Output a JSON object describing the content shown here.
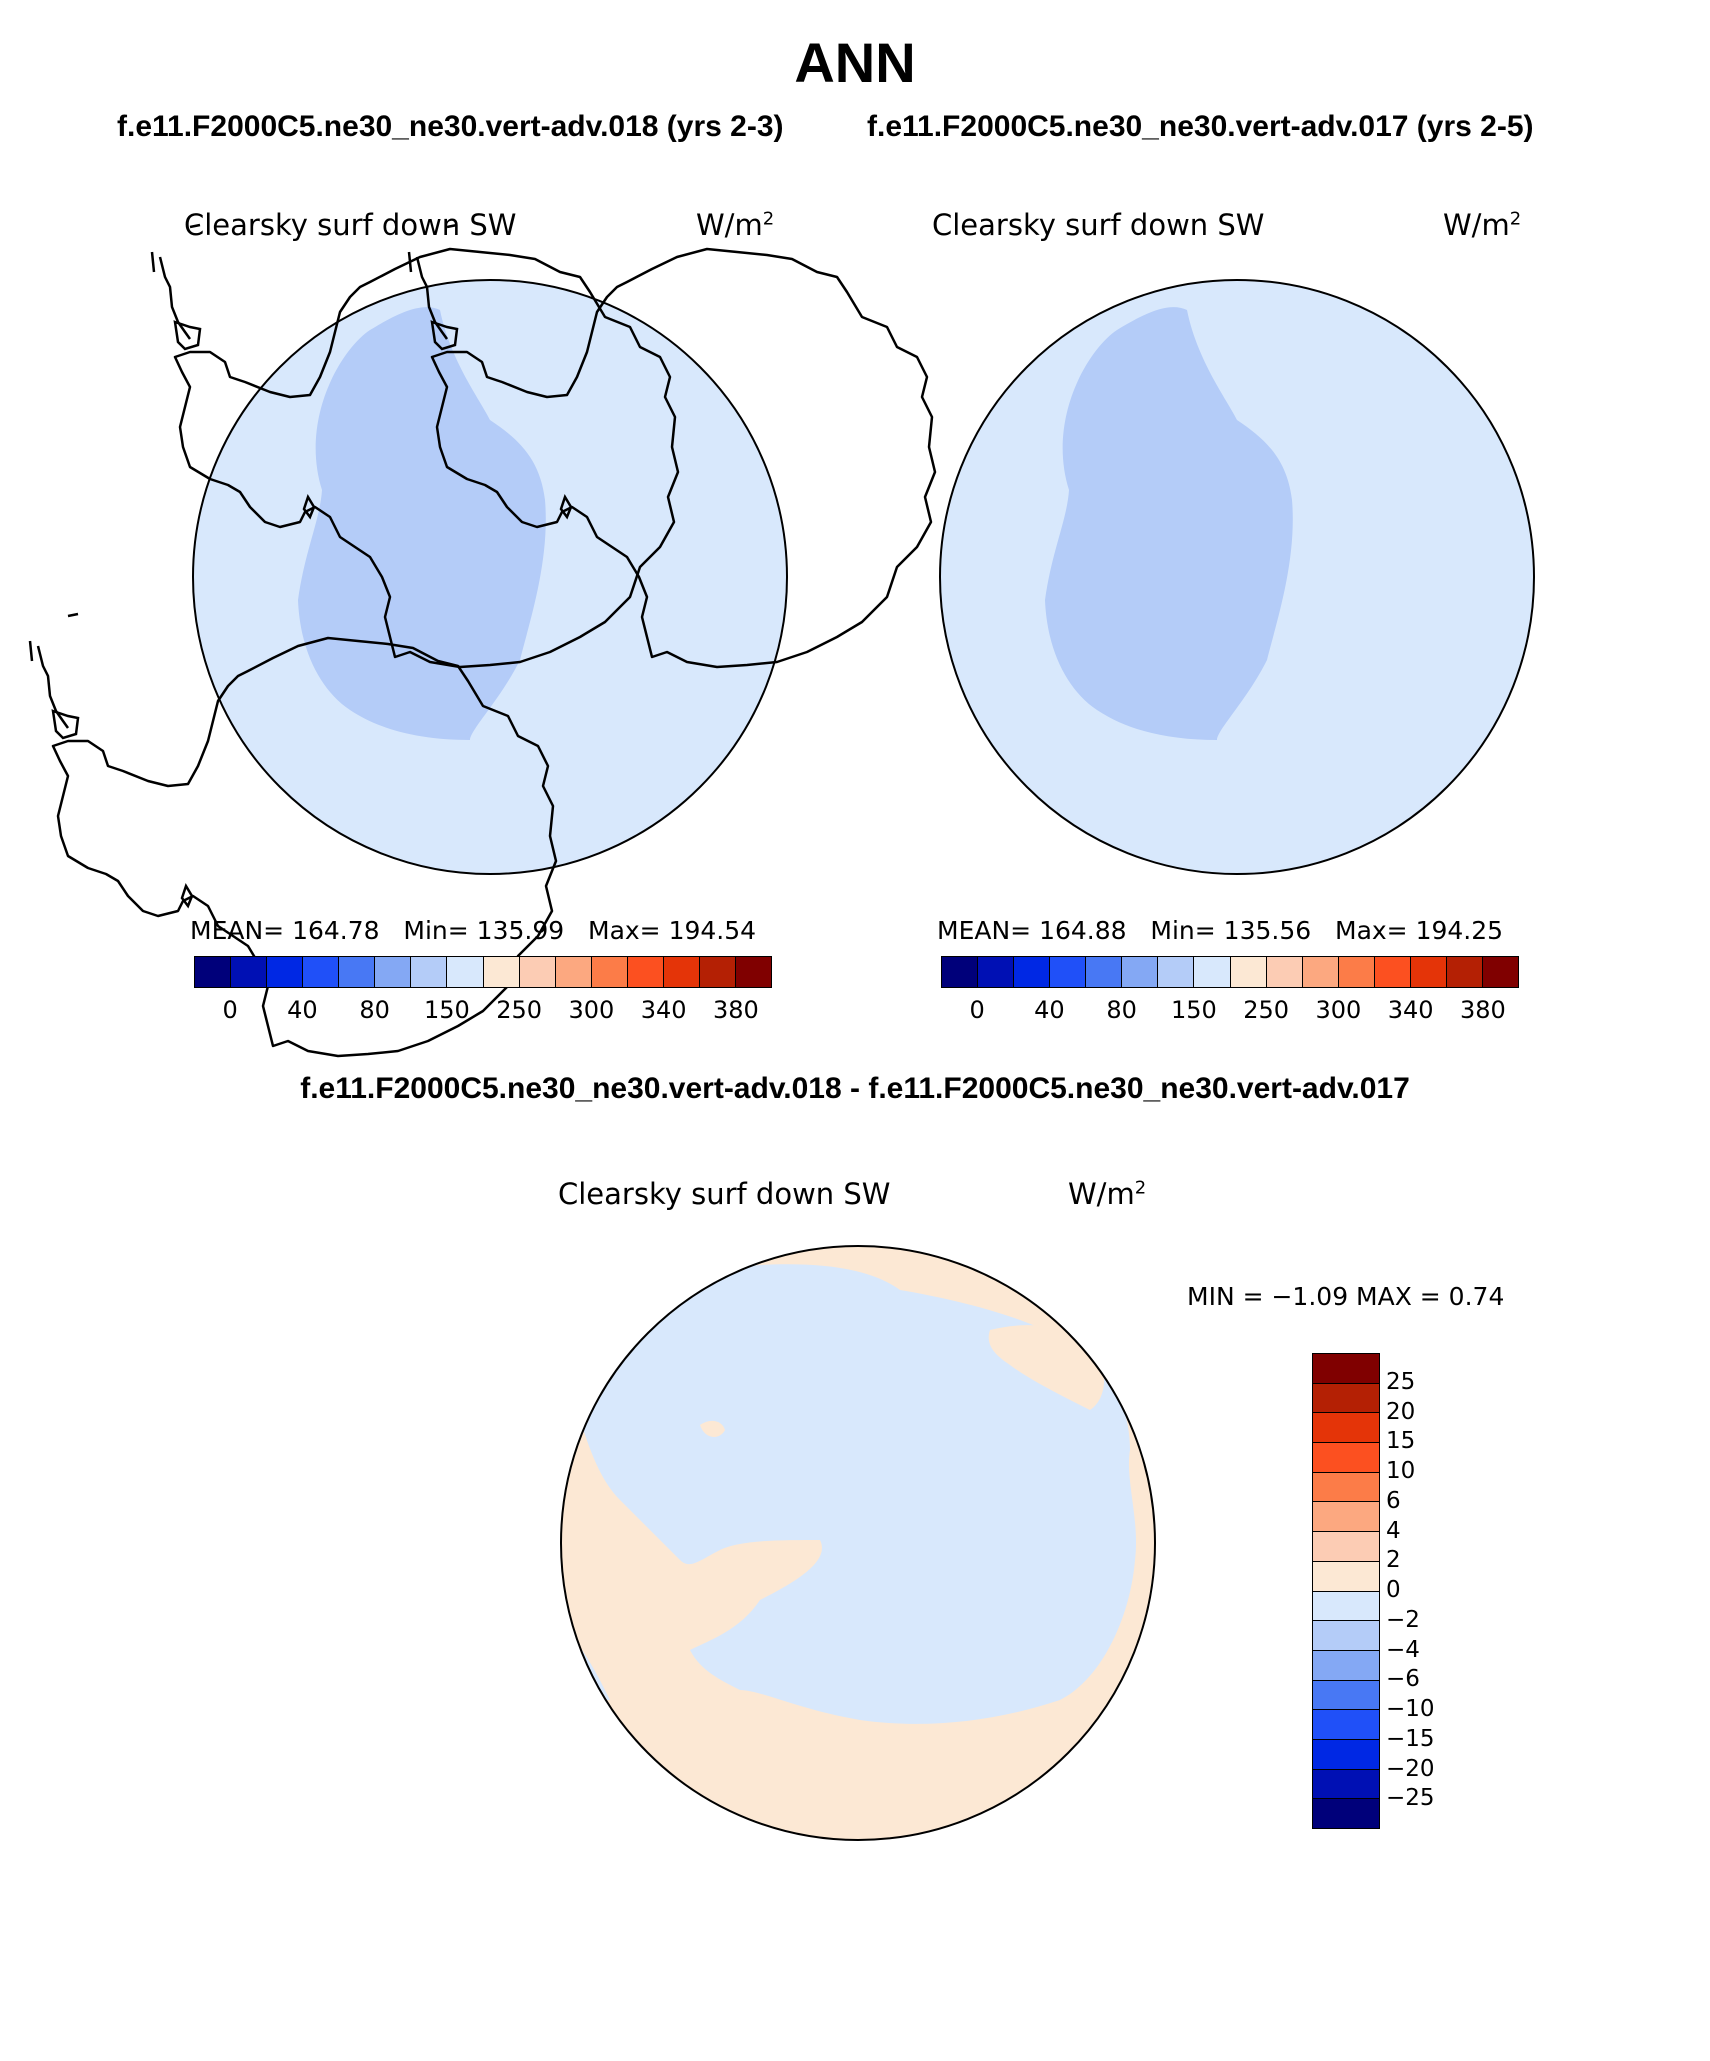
{
  "header": {
    "title": "ANN",
    "left_case": "f.e11.F2000C5.ne30_ne30.vert-adv.018 (yrs 2-3)",
    "right_case": "f.e11.F2000C5.ne30_ne30.vert-adv.017 (yrs 2-5)",
    "diff_title": "f.e11.F2000C5.ne30_ne30.vert-adv.018 - f.e11.F2000C5.ne30_ne30.vert-adv.017"
  },
  "panels": {
    "left": {
      "variable": "Clearsky surf down SW",
      "units_base": "W/m",
      "units_exp": "2",
      "mean_label": "MEAN=",
      "mean": "164.78",
      "min_label": "Min=",
      "min": "135.99",
      "max_label": "Max=",
      "max": "194.54"
    },
    "right": {
      "variable": "Clearsky surf down SW",
      "units_base": "W/m",
      "units_exp": "2",
      "mean_label": "MEAN=",
      "mean": "164.88",
      "min_label": "Min=",
      "min": "135.56",
      "max_label": "Max=",
      "max": "194.25"
    },
    "diff": {
      "variable": "Clearsky surf down SW",
      "units_base": "W/m",
      "units_exp": "2",
      "minmax": "MIN =   −1.09 MAX =     0.74"
    }
  },
  "colorbar_abs": {
    "labels": [
      "0",
      "40",
      "80",
      "150",
      "250",
      "300",
      "340",
      "380"
    ],
    "colors": [
      "#00007a",
      "#0010b4",
      "#0028e4",
      "#2050f8",
      "#4878f4",
      "#84a8f4",
      "#b4ccf8",
      "#d8e8fc",
      "#fce8d4",
      "#fcccb4",
      "#fca880",
      "#fc7c48",
      "#fc5020",
      "#e43408",
      "#b42004",
      "#800000"
    ]
  },
  "colorbar_diff": {
    "labels": [
      "25",
      "20",
      "15",
      "10",
      "6",
      "4",
      "2",
      "0",
      "−2",
      "−4",
      "−6",
      "−10",
      "−15",
      "−20",
      "−25"
    ],
    "colors": [
      "#800000",
      "#b42004",
      "#e43408",
      "#fc5020",
      "#fc7c48",
      "#fca880",
      "#fcccb4",
      "#fce8d4",
      "#d8e8fc",
      "#b4ccf8",
      "#84a8f4",
      "#4878f4",
      "#2050f8",
      "#0028e4",
      "#0010b4",
      "#00007a"
    ]
  },
  "map_colors": {
    "ocean_abs": "#d8e8fc",
    "interior_abs": "#b4ccf8",
    "diff_neg": "#d8e8fc",
    "diff_pos": "#fce8d4"
  }
}
